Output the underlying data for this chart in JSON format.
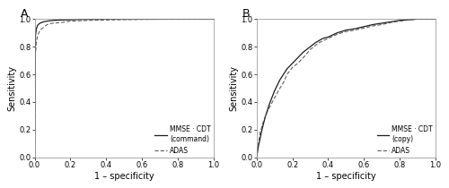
{
  "panel_A_label": "A",
  "panel_B_label": "B",
  "xlabel": "1 – specificity",
  "ylabel": "Sensitivity",
  "xlim": [
    0.0,
    1.0
  ],
  "ylim": [
    0.0,
    1.0
  ],
  "xticks": [
    0.0,
    0.2,
    0.4,
    0.6,
    0.8,
    1.0
  ],
  "yticks": [
    0.0,
    0.2,
    0.4,
    0.6,
    0.8,
    1.0
  ],
  "legend_A": [
    "MMSE · CDT\n(command)",
    "ADAS"
  ],
  "legend_B": [
    "MMSE · CDT\n(copy)",
    "ADAS"
  ],
  "line_color_solid": "#1a1a1a",
  "line_color_dashed": "#555555",
  "bg_color": "#ffffff",
  "panel_bg": "#ffffff",
  "tick_fontsize": 6,
  "label_fontsize": 7,
  "legend_fontsize": 5.5,
  "panel_label_fontsize": 9,
  "A_mmse_x": [
    0.0,
    0.005,
    0.01,
    0.015,
    0.02,
    0.03,
    0.04,
    0.05,
    0.07,
    0.1,
    0.15,
    0.25,
    0.4,
    0.6,
    1.0
  ],
  "A_mmse_y": [
    0.0,
    0.88,
    0.93,
    0.95,
    0.96,
    0.97,
    0.975,
    0.98,
    0.985,
    0.99,
    0.993,
    0.997,
    0.999,
    1.0,
    1.0
  ],
  "A_adas_x": [
    0.0,
    0.005,
    0.01,
    0.02,
    0.03,
    0.05,
    0.07,
    0.1,
    0.15,
    0.2,
    0.3,
    0.4,
    0.6,
    0.8,
    1.0
  ],
  "A_adas_y": [
    0.0,
    0.75,
    0.84,
    0.89,
    0.92,
    0.94,
    0.96,
    0.97,
    0.975,
    0.985,
    0.99,
    0.993,
    0.997,
    0.999,
    1.0
  ],
  "B_mmse_x": [
    0.0,
    0.01,
    0.02,
    0.03,
    0.05,
    0.07,
    0.1,
    0.13,
    0.15,
    0.17,
    0.2,
    0.23,
    0.26,
    0.3,
    0.33,
    0.37,
    0.4,
    0.45,
    0.5,
    0.55,
    0.6,
    0.65,
    0.7,
    0.75,
    0.8,
    0.85,
    0.9,
    1.0
  ],
  "B_mmse_y": [
    0.0,
    0.08,
    0.14,
    0.2,
    0.3,
    0.38,
    0.48,
    0.56,
    0.6,
    0.64,
    0.68,
    0.72,
    0.76,
    0.8,
    0.83,
    0.86,
    0.87,
    0.9,
    0.92,
    0.93,
    0.945,
    0.96,
    0.97,
    0.98,
    0.99,
    0.995,
    1.0,
    1.0
  ],
  "B_adas_x": [
    0.0,
    0.01,
    0.02,
    0.04,
    0.06,
    0.08,
    0.1,
    0.13,
    0.15,
    0.17,
    0.2,
    0.23,
    0.26,
    0.3,
    0.35,
    0.4,
    0.45,
    0.5,
    0.55,
    0.6,
    0.65,
    0.7,
    0.75,
    0.8,
    0.85,
    0.9,
    1.0
  ],
  "B_adas_y": [
    0.0,
    0.1,
    0.18,
    0.27,
    0.33,
    0.38,
    0.43,
    0.5,
    0.54,
    0.6,
    0.65,
    0.68,
    0.72,
    0.78,
    0.83,
    0.86,
    0.89,
    0.91,
    0.92,
    0.935,
    0.95,
    0.96,
    0.975,
    0.985,
    0.993,
    1.0,
    1.0
  ]
}
